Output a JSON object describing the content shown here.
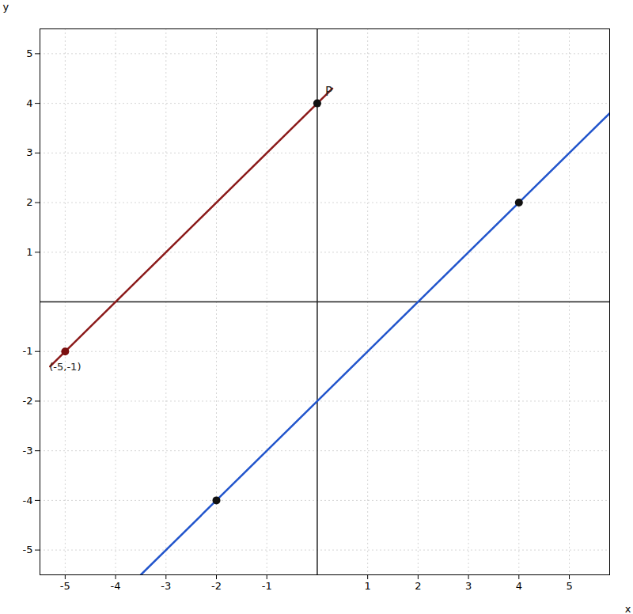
{
  "chart_data": {
    "type": "line",
    "xlabel": "x",
    "ylabel": "y",
    "xlim": [
      -5.5,
      5.8
    ],
    "ylim": [
      -5.5,
      5.5
    ],
    "xticks": [
      -5,
      -4,
      -3,
      -2,
      -1,
      1,
      2,
      3,
      4,
      5
    ],
    "yticks": [
      -5,
      -4,
      -3,
      -2,
      -1,
      1,
      2,
      3,
      4,
      5
    ],
    "grid": true,
    "series": [
      {
        "type": "line",
        "color": "#8B1A1A",
        "x": [
          -5.3,
          0.3
        ],
        "values": [
          -1.3,
          4.3
        ]
      },
      {
        "type": "line",
        "color": "#2255CC",
        "x": [
          -3.5,
          5.8
        ],
        "values": [
          -5.5,
          3.8
        ]
      },
      {
        "type": "scatter",
        "color": "#111111",
        "x": [
          0,
          -2,
          4
        ],
        "values": [
          4,
          -4,
          2
        ]
      },
      {
        "type": "scatter",
        "color": "#7B1010",
        "x": [
          -5
        ],
        "values": [
          -1
        ]
      }
    ],
    "annotations": [
      {
        "text": "P",
        "x": 0,
        "y": 4
      },
      {
        "text": "(-5,-1)",
        "x": -5,
        "y": -1
      }
    ]
  }
}
